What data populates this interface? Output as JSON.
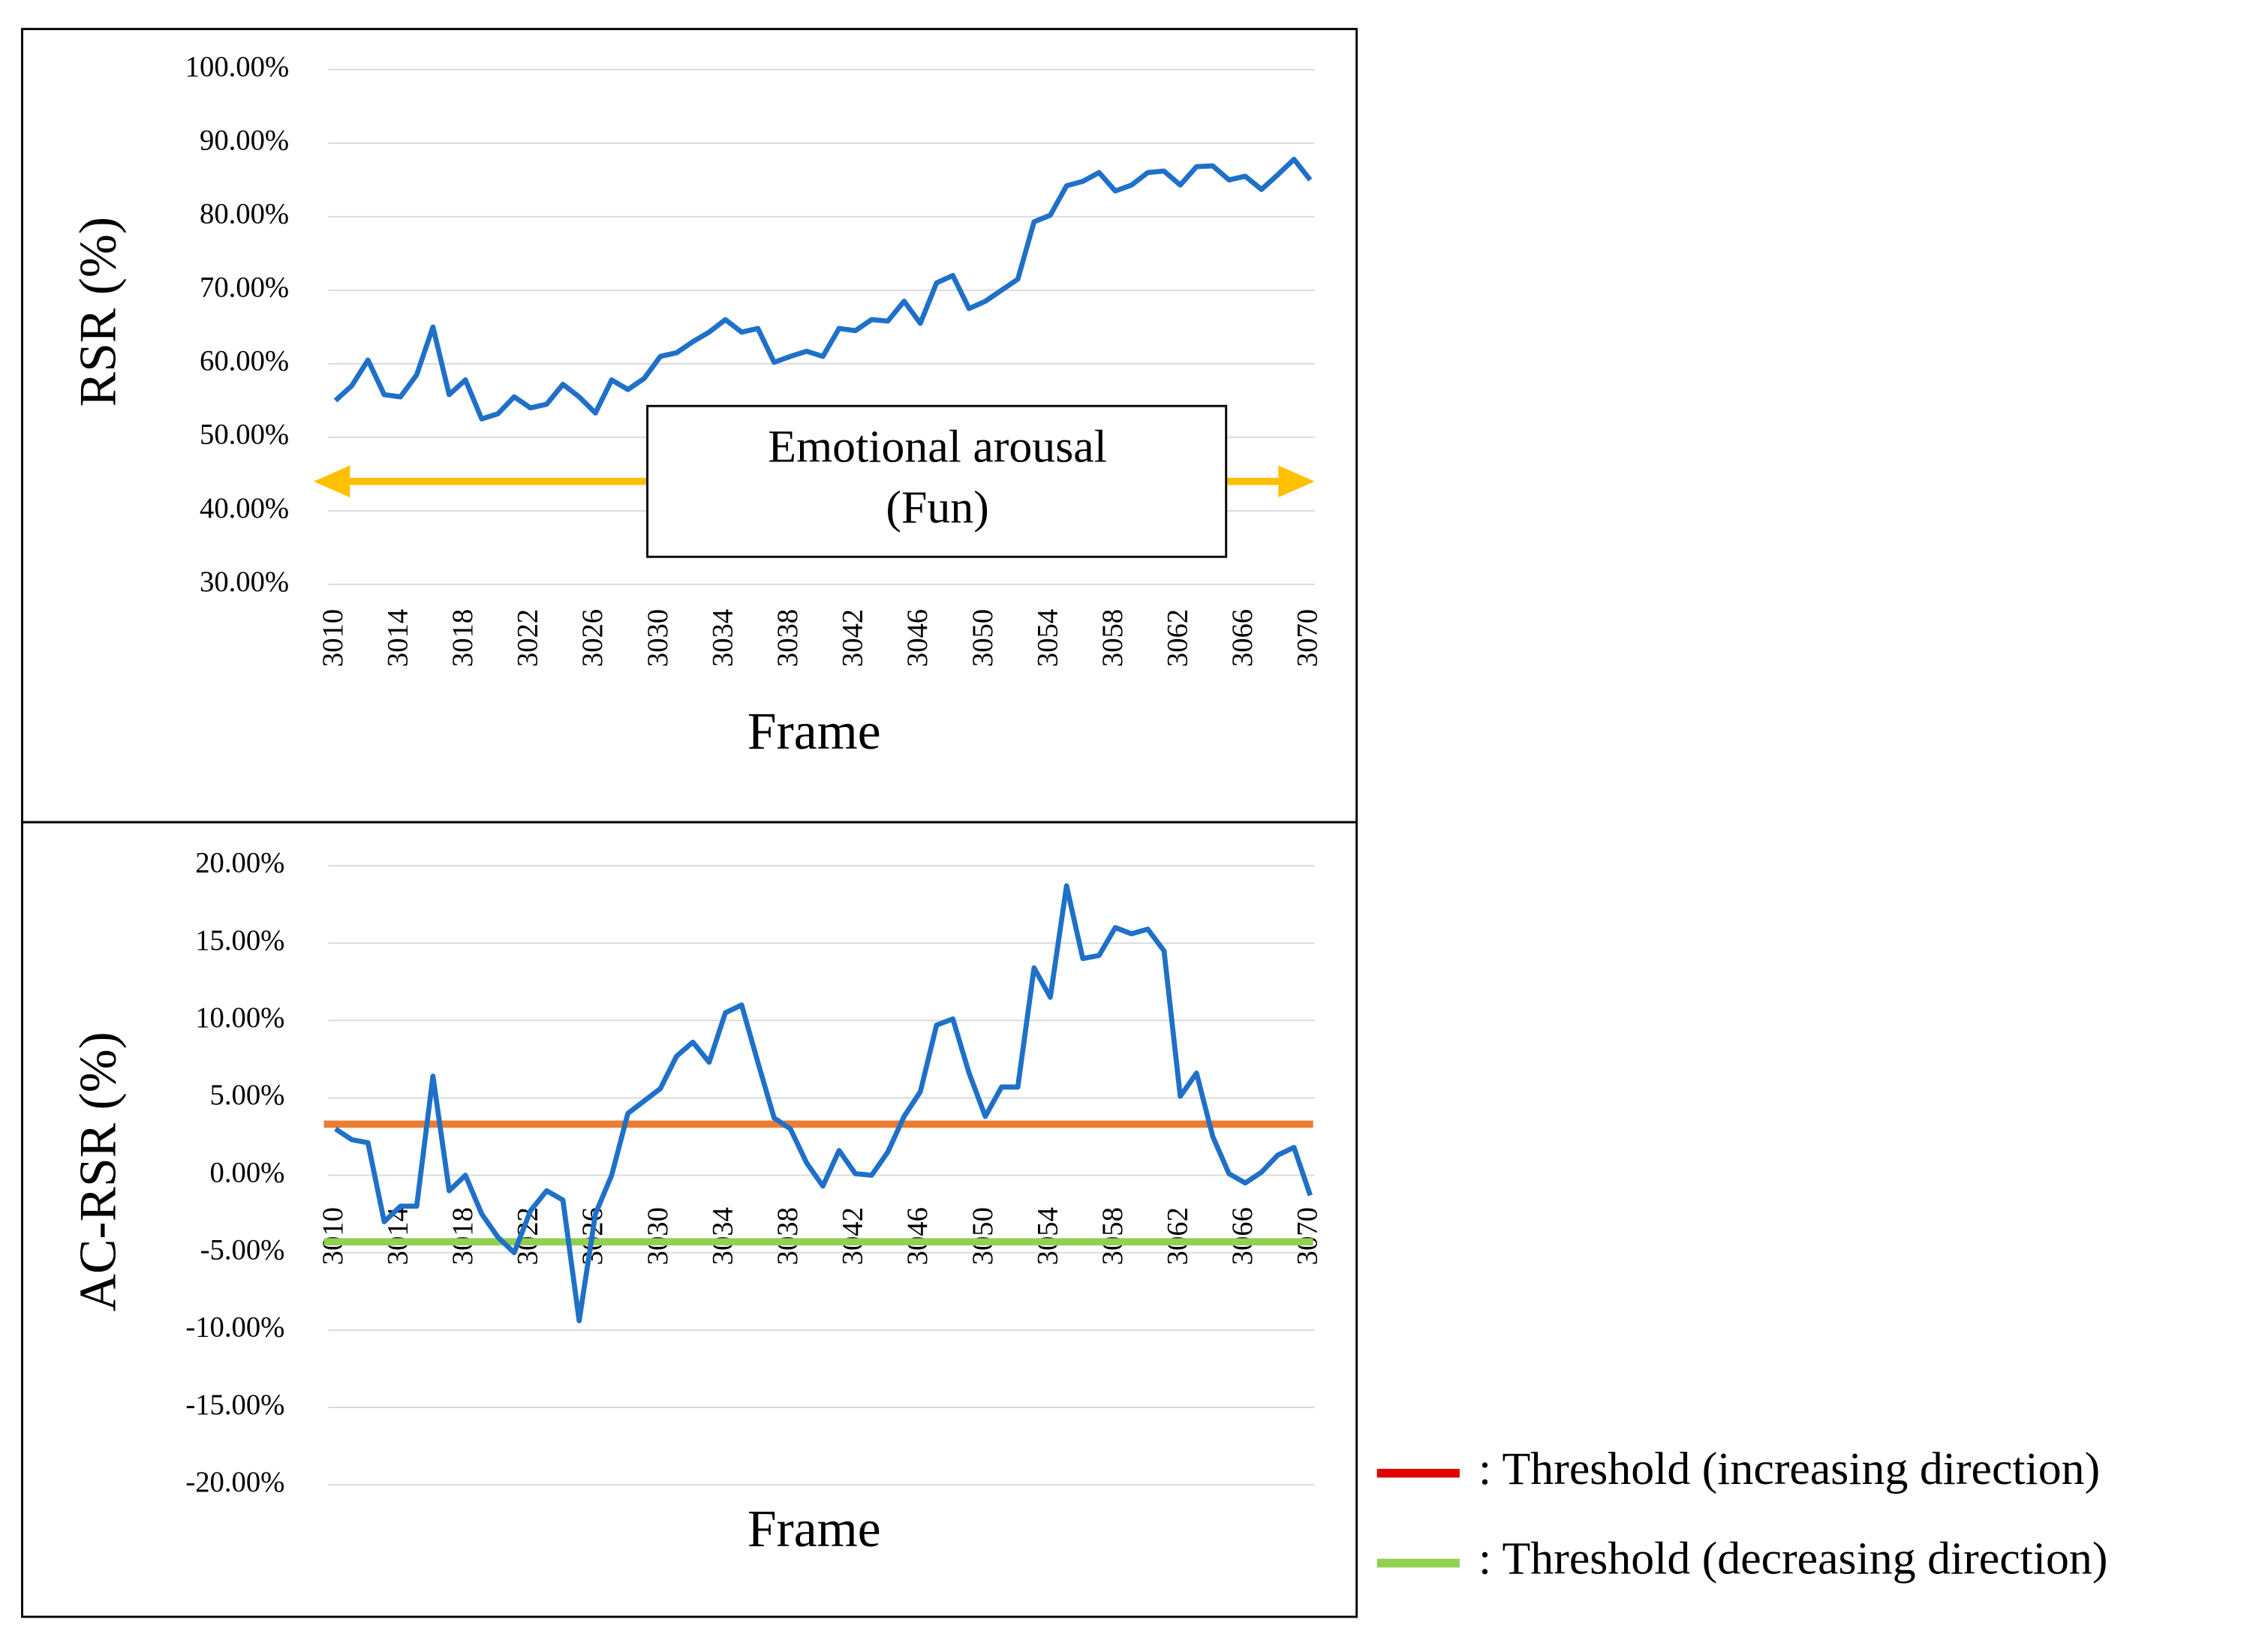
{
  "chart_data": [
    {
      "type": "line",
      "xlabel": "Frame",
      "ylabel": "RSR (%)",
      "x": [
        3010,
        3011,
        3012,
        3013,
        3014,
        3015,
        3016,
        3017,
        3018,
        3019,
        3020,
        3021,
        3022,
        3023,
        3024,
        3025,
        3026,
        3027,
        3028,
        3029,
        3030,
        3031,
        3032,
        3033,
        3034,
        3035,
        3036,
        3037,
        3038,
        3039,
        3040,
        3041,
        3042,
        3043,
        3044,
        3045,
        3046,
        3047,
        3048,
        3049,
        3050,
        3051,
        3052,
        3053,
        3054,
        3055,
        3056,
        3057,
        3058,
        3059,
        3060,
        3061,
        3062,
        3063,
        3064,
        3065,
        3066,
        3067,
        3068,
        3069,
        3070
      ],
      "xlim": [
        3010,
        3070
      ],
      "xticks": [
        3010,
        3014,
        3018,
        3022,
        3026,
        3030,
        3034,
        3038,
        3042,
        3046,
        3050,
        3054,
        3058,
        3062,
        3066,
        3070
      ],
      "ylim": [
        30,
        100
      ],
      "yticks": [
        {
          "value": 30,
          "label": "30.00%"
        },
        {
          "value": 40,
          "label": "40.00%"
        },
        {
          "value": 50,
          "label": "50.00%"
        },
        {
          "value": 60,
          "label": "60.00%"
        },
        {
          "value": 70,
          "label": "70.00%"
        },
        {
          "value": 80,
          "label": "80.00%"
        },
        {
          "value": 90,
          "label": "90.00%"
        },
        {
          "value": 100,
          "label": "100.00%"
        }
      ],
      "grid": true,
      "series": [
        {
          "color": "#1f70c8",
          "values": [
            55,
            57,
            60.5,
            55.8,
            55.5,
            58.5,
            65,
            55.8,
            57.8,
            52.5,
            53.2,
            55.5,
            54,
            54.5,
            57.2,
            55.5,
            53.3,
            57.8,
            56.5,
            58,
            61,
            61.5,
            63,
            64.3,
            66,
            64.3,
            64.8,
            60.2,
            61,
            61.7,
            61,
            64.8,
            64.5,
            66,
            65.8,
            68.5,
            65.5,
            71,
            72,
            67.5,
            68.5,
            70,
            71.5,
            79.3,
            80.2,
            84.2,
            84.8,
            86,
            83.5,
            84.3,
            86,
            86.2,
            84.3,
            86.8,
            86.9,
            85,
            85.5,
            83.7,
            85.7,
            87.8,
            85
          ]
        }
      ],
      "annotation": {
        "lines": [
          "Emotional arousal",
          "(Fun)"
        ],
        "arrow_y": 44,
        "arrow_color": "#ffc000"
      }
    },
    {
      "type": "line",
      "xlabel": "Frame",
      "ylabel": "AC-RSR (%)",
      "x": [
        3010,
        3011,
        3012,
        3013,
        3014,
        3015,
        3016,
        3017,
        3018,
        3019,
        3020,
        3021,
        3022,
        3023,
        3024,
        3025,
        3026,
        3027,
        3028,
        3029,
        3030,
        3031,
        3032,
        3033,
        3034,
        3035,
        3036,
        3037,
        3038,
        3039,
        3040,
        3041,
        3042,
        3043,
        3044,
        3045,
        3046,
        3047,
        3048,
        3049,
        3050,
        3051,
        3052,
        3053,
        3054,
        3055,
        3056,
        3057,
        3058,
        3059,
        3060,
        3061,
        3062,
        3063,
        3064,
        3065,
        3066,
        3067,
        3068,
        3069,
        3070
      ],
      "xlim": [
        3010,
        3070
      ],
      "xticks": [
        3010,
        3014,
        3018,
        3022,
        3026,
        3030,
        3034,
        3038,
        3042,
        3046,
        3050,
        3054,
        3058,
        3062,
        3066,
        3070
      ],
      "ylim": [
        -20,
        20
      ],
      "yticks": [
        {
          "value": -20,
          "label": "-20.00%"
        },
        {
          "value": -15,
          "label": "-15.00%"
        },
        {
          "value": -10,
          "label": "-10.00%"
        },
        {
          "value": -5,
          "label": "-5.00%"
        },
        {
          "value": 0,
          "label": "0.00%"
        },
        {
          "value": 5,
          "label": "5.00%"
        },
        {
          "value": 10,
          "label": "10.00%"
        },
        {
          "value": 15,
          "label": "15.00%"
        },
        {
          "value": 20,
          "label": "20.00%"
        }
      ],
      "grid": true,
      "series": [
        {
          "color": "#1f70c8",
          "values": [
            3,
            2.3,
            2.1,
            -3,
            -2,
            -2,
            6.4,
            -1,
            0,
            -2.5,
            -4,
            -5,
            -2.3,
            -1,
            -1.6,
            -9.4,
            -2.5,
            0,
            4,
            4.8,
            5.6,
            7.7,
            8.6,
            7.3,
            10.5,
            11,
            7.3,
            3.7,
            3,
            0.8,
            -0.7,
            1.6,
            0.1,
            0,
            1.5,
            3.8,
            5.4,
            9.7,
            10.1,
            6.6,
            3.8,
            5.7,
            5.7,
            13.4,
            11.5,
            18.7,
            14,
            14.2,
            16,
            15.6,
            15.9,
            14.5,
            5.1,
            6.6,
            2.5,
            0.1,
            -0.5,
            0.2,
            1.3,
            1.8,
            -1.3
          ]
        }
      ],
      "thresholds": [
        {
          "name": ": Threshold (increasing direction)",
          "value": 3.3,
          "color": "#ed7d31",
          "legend_color": "#e00000"
        },
        {
          "name": ": Threshold (decreasing direction)",
          "value": -4.3,
          "color": "#92d050",
          "legend_color": "#92d050"
        }
      ]
    }
  ]
}
